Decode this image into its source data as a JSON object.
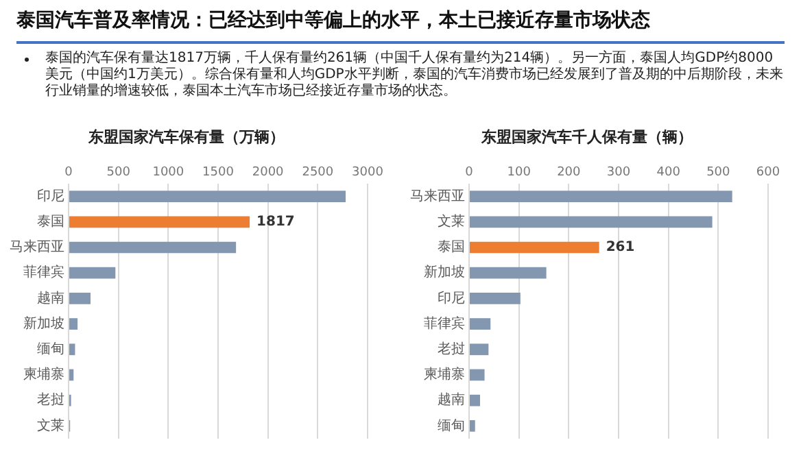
{
  "chart_data": [
    {
      "type": "other",
      "title": "泰国汽车普及率情况：已经达到中等偏上的水平，本土已接近存量市场状态",
      "subtitle": "泰国的汽车保有量达1817万辆，千人保有量约261辆（中国千人保有量约为214辆）。另一方面，泰国人均GDP约8000美元（中国约1万美元）。综合保有量和人均GDP水平判断，泰国的汽车消费市场已经发展到了普及期的中后期阶段，未来行业销量的增速较低，泰国本土汽车市场已经接近存量市场的状态。"
    },
    {
      "type": "bar",
      "orientation": "horizontal",
      "title": "东盟国家汽车保有量（万辆）",
      "categories": [
        "印尼",
        "泰国",
        "马来西亚",
        "菲律宾",
        "越南",
        "新加坡",
        "缅甸",
        "柬埔寨",
        "老挝",
        "文莱"
      ],
      "values": [
        2780,
        1817,
        1680,
        470,
        220,
        90,
        65,
        50,
        25,
        15
      ],
      "colors": [
        "#8497b0",
        "#ed7d31",
        "#8497b0",
        "#8497b0",
        "#8497b0",
        "#8497b0",
        "#8497b0",
        "#8497b0",
        "#8497b0",
        "#8497b0"
      ],
      "value_labels": [
        null,
        "1817",
        null,
        null,
        null,
        null,
        null,
        null,
        null,
        null
      ],
      "xlim": [
        0,
        3000
      ],
      "xticks": [
        0,
        500,
        1000,
        1500,
        2000,
        2500,
        3000
      ],
      "grid": "x"
    },
    {
      "type": "bar",
      "orientation": "horizontal",
      "title": "东盟国家汽车千人保有量（辆）",
      "categories": [
        "马来西亚",
        "文莱",
        "泰国",
        "新加坡",
        "印尼",
        "菲律宾",
        "老挝",
        "柬埔寨",
        "越南",
        "缅甸"
      ],
      "values": [
        528,
        488,
        261,
        155,
        103,
        43,
        39,
        31,
        22,
        12
      ],
      "colors": [
        "#8497b0",
        "#8497b0",
        "#ed7d31",
        "#8497b0",
        "#8497b0",
        "#8497b0",
        "#8497b0",
        "#8497b0",
        "#8497b0",
        "#8497b0"
      ],
      "value_labels": [
        null,
        null,
        "261",
        null,
        null,
        null,
        null,
        null,
        null,
        null
      ],
      "xlim": [
        0,
        600
      ],
      "xticks": [
        0,
        100,
        200,
        300,
        400,
        500,
        600
      ],
      "grid": "x"
    }
  ]
}
